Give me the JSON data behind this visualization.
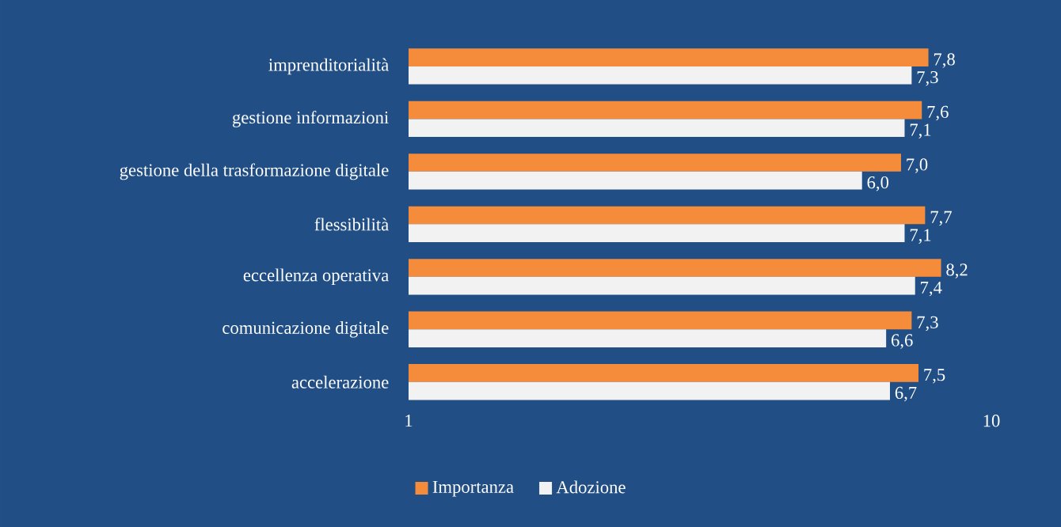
{
  "chart_data": {
    "type": "bar",
    "orientation": "horizontal",
    "categories": [
      "imprenditorialità",
      "gestione informazioni",
      "gestione della trasformazione digitale",
      "flessibilità",
      "eccellenza operativa",
      "comunicazione digitale",
      "accelerazione"
    ],
    "series": [
      {
        "name": "Importanza",
        "color": "#f58c3c",
        "values": [
          7.8,
          7.6,
          7.0,
          7.7,
          8.2,
          7.3,
          7.5
        ],
        "value_labels": [
          "7,8",
          "7,6",
          "7,0",
          "7,7",
          "8,2",
          "7,3",
          "7,5"
        ]
      },
      {
        "name": "Adozione",
        "color": "#f2f2f2",
        "values": [
          7.3,
          7.1,
          6.0,
          7.1,
          7.4,
          6.6,
          6.7
        ],
        "value_labels": [
          "7,3",
          "7,1",
          "6,0",
          "7,1",
          "7,4",
          "6,6",
          "6,7"
        ]
      }
    ],
    "xlim": [
      1,
      10
    ],
    "xticks": [
      1,
      10
    ],
    "log": "x",
    "legend": "bottom left"
  }
}
